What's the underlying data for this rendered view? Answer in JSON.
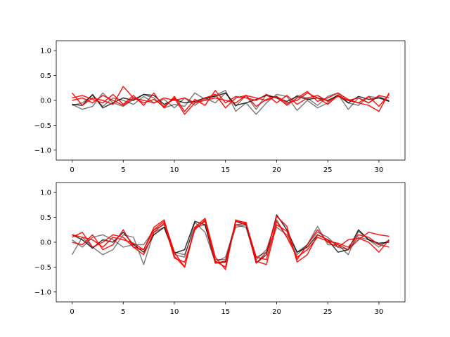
{
  "chart_data": [
    {
      "type": "line",
      "title": "",
      "xlabel": "",
      "ylabel": "",
      "xlim": [
        -1.55,
        32.55
      ],
      "ylim": [
        -1.2,
        1.2
      ],
      "xticks": [
        0,
        5,
        10,
        15,
        20,
        25,
        30
      ],
      "yticks": [
        -1.0,
        -0.5,
        0.0,
        0.5,
        1.0
      ],
      "xtick_labels": [
        "0",
        "5",
        "10",
        "15",
        "20",
        "25",
        "30"
      ],
      "ytick_labels": [
        "−1.0",
        "−0.5",
        "0.0",
        "0.5",
        "1.0"
      ],
      "grid": false,
      "x": [
        0,
        1,
        2,
        3,
        4,
        5,
        6,
        7,
        8,
        9,
        10,
        11,
        12,
        13,
        14,
        15,
        16,
        17,
        18,
        19,
        20,
        21,
        22,
        23,
        24,
        25,
        26,
        27,
        28,
        29,
        30,
        31
      ],
      "series": [
        {
          "color": "#000000",
          "opacity": 0.5,
          "values": [
            -0.08,
            -0.18,
            -0.12,
            0.15,
            -0.05,
            -0.12,
            0.02,
            0.12,
            0.05,
            -0.15,
            -0.08,
            -0.12,
            0.15,
            0.02,
            0.1,
            0.2,
            -0.22,
            -0.05,
            -0.28,
            -0.05,
            0.12,
            0.08,
            -0.2,
            0.0,
            -0.15,
            -0.05,
            0.12,
            -0.18,
            0.05,
            -0.05,
            0.08,
            -0.02
          ]
        },
        {
          "color": "#000000",
          "opacity": 0.5,
          "values": [
            -0.1,
            -0.05,
            0.1,
            -0.12,
            0.05,
            0.0,
            -0.08,
            0.08,
            -0.05,
            0.02,
            -0.15,
            0.05,
            -0.1,
            0.05,
            -0.05,
            0.15,
            -0.12,
            0.1,
            -0.18,
            0.12,
            0.05,
            -0.08,
            0.1,
            0.05,
            -0.1,
            0.08,
            0.15,
            -0.05,
            -0.1,
            0.08,
            0.05,
            0.0
          ]
        },
        {
          "color": "#000000",
          "opacity": 0.8,
          "values": [
            -0.08,
            -0.1,
            0.12,
            -0.15,
            -0.05,
            0.05,
            0.0,
            0.12,
            0.1,
            -0.08,
            0.02,
            -0.05,
            -0.02,
            0.05,
            0.08,
            0.15,
            -0.1,
            -0.05,
            0.02,
            0.1,
            0.05,
            -0.02,
            0.08,
            0.02,
            0.05,
            0.0,
            0.1,
            -0.05,
            0.08,
            0.02,
            0.05,
            -0.02
          ]
        },
        {
          "color": "#ff0000",
          "opacity": 0.9,
          "values": [
            0.15,
            -0.1,
            0.05,
            0.0,
            -0.08,
            0.28,
            0.05,
            -0.05,
            0.02,
            -0.12,
            0.05,
            -0.28,
            -0.05,
            0.05,
            0.12,
            -0.15,
            0.05,
            0.1,
            -0.12,
            0.02,
            0.08,
            -0.1,
            0.05,
            0.18,
            -0.02,
            0.05,
            0.15,
            0.02,
            -0.05,
            -0.1,
            -0.22,
            0.15
          ]
        },
        {
          "color": "#ff0000",
          "opacity": 0.9,
          "values": [
            0.05,
            0.1,
            0.02,
            -0.05,
            0.12,
            -0.08,
            0.1,
            -0.1,
            0.15,
            -0.15,
            0.08,
            -0.22,
            0.02,
            -0.1,
            0.2,
            -0.05,
            0.08,
            0.05,
            0.0,
            0.12,
            -0.05,
            0.1,
            -0.08,
            0.05,
            0.1,
            -0.02,
            0.08,
            0.0,
            -0.05,
            0.08,
            -0.12,
            0.12
          ]
        },
        {
          "color": "#ff0000",
          "opacity": 0.9,
          "values": [
            0.0,
            0.05,
            -0.05,
            0.1,
            0.0,
            -0.1,
            0.05,
            0.0,
            -0.05,
            0.05,
            0.0,
            0.05,
            -0.05,
            0.0,
            0.05,
            0.0,
            -0.05,
            0.1,
            0.05,
            0.0,
            0.08,
            -0.05,
            0.0,
            0.15,
            0.05,
            -0.08,
            0.1,
            0.0,
            0.05,
            -0.05,
            0.1,
            0.05
          ]
        }
      ]
    },
    {
      "type": "line",
      "title": "",
      "xlabel": "",
      "ylabel": "",
      "xlim": [
        -1.55,
        32.55
      ],
      "ylim": [
        -1.2,
        1.2
      ],
      "xticks": [
        0,
        5,
        10,
        15,
        20,
        25,
        30
      ],
      "yticks": [
        -1.0,
        -0.5,
        0.0,
        0.5,
        1.0
      ],
      "xtick_labels": [
        "0",
        "5",
        "10",
        "15",
        "20",
        "25",
        "30"
      ],
      "ytick_labels": [
        "−1.0",
        "−0.5",
        "0.0",
        "0.5",
        "1.0"
      ],
      "grid": false,
      "x": [
        0,
        1,
        2,
        3,
        4,
        5,
        6,
        7,
        8,
        9,
        10,
        11,
        12,
        13,
        14,
        15,
        16,
        17,
        18,
        19,
        20,
        21,
        22,
        23,
        24,
        25,
        26,
        27,
        28,
        29,
        30,
        31
      ],
      "series": [
        {
          "color": "#000000",
          "opacity": 0.5,
          "values": [
            -0.25,
            0.1,
            -0.1,
            -0.25,
            -0.15,
            0.15,
            0.1,
            -0.45,
            0.2,
            0.3,
            -0.25,
            -0.3,
            0.4,
            0.2,
            -0.4,
            -0.3,
            0.35,
            0.3,
            -0.35,
            -0.15,
            0.45,
            0.1,
            -0.25,
            -0.05,
            0.32,
            -0.05,
            -0.05,
            -0.25,
            0.22,
            0.05,
            -0.1,
            0.05
          ]
        },
        {
          "color": "#000000",
          "opacity": 0.5,
          "values": [
            0.05,
            -0.1,
            0.1,
            0.15,
            0.05,
            -0.1,
            -0.05,
            -0.05,
            0.25,
            0.35,
            -0.2,
            -0.25,
            0.3,
            0.35,
            -0.35,
            -0.35,
            0.3,
            0.35,
            -0.3,
            -0.2,
            0.3,
            0.15,
            -0.2,
            -0.05,
            0.2,
            0.1,
            -0.1,
            -0.15,
            0.1,
            0.05,
            -0.05,
            0.02
          ]
        },
        {
          "color": "#000000",
          "opacity": 0.8,
          "values": [
            0.15,
            0.05,
            -0.12,
            0.05,
            0.0,
            0.2,
            -0.05,
            -0.2,
            0.15,
            0.3,
            -0.22,
            -0.15,
            0.42,
            0.35,
            -0.42,
            -0.4,
            0.42,
            0.35,
            -0.42,
            -0.25,
            0.55,
            0.25,
            -0.2,
            -0.1,
            0.15,
            0.05,
            -0.2,
            -0.15,
            0.25,
            0.05,
            -0.02,
            0.0
          ]
        },
        {
          "color": "#ff0000",
          "opacity": 0.9,
          "values": [
            0.1,
            0.2,
            -0.1,
            0.0,
            0.15,
            0.1,
            -0.1,
            -0.15,
            0.3,
            0.45,
            -0.28,
            -0.5,
            0.3,
            0.48,
            -0.3,
            -0.55,
            0.45,
            0.38,
            -0.42,
            -0.2,
            0.52,
            0.32,
            -0.4,
            -0.25,
            0.15,
            0.05,
            -0.05,
            -0.15,
            0.05,
            0.2,
            0.15,
            0.12
          ]
        },
        {
          "color": "#ff0000",
          "opacity": 0.9,
          "values": [
            0.0,
            -0.05,
            0.15,
            -0.15,
            -0.05,
            0.25,
            -0.1,
            -0.25,
            0.2,
            0.38,
            -0.32,
            -0.4,
            0.25,
            0.45,
            -0.38,
            -0.5,
            0.42,
            0.4,
            -0.38,
            -0.45,
            0.35,
            0.22,
            -0.35,
            -0.05,
            0.25,
            0.0,
            -0.1,
            0.05,
            0.08,
            0.0,
            -0.2,
            0.05
          ]
        },
        {
          "color": "#ff0000",
          "opacity": 0.9,
          "values": [
            0.15,
            0.1,
            0.05,
            -0.1,
            0.1,
            0.05,
            -0.02,
            -0.15,
            0.25,
            0.42,
            -0.2,
            -0.5,
            0.28,
            0.42,
            -0.42,
            -0.38,
            0.35,
            0.38,
            -0.3,
            -0.35,
            0.42,
            0.1,
            -0.3,
            -0.15,
            0.1,
            0.02,
            -0.02,
            -0.1,
            0.15,
            0.1,
            -0.05,
            -0.1
          ]
        }
      ]
    }
  ]
}
